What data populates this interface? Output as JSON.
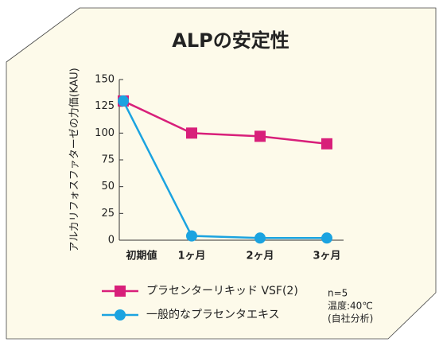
{
  "chart_data": {
    "type": "line",
    "title": "ALPの安定性",
    "y_label": "アルカリフォスファターゼの力価(KAU)",
    "categories": [
      "初期値",
      "1ヶ月",
      "2ヶ月",
      "3ヶ月"
    ],
    "series": [
      {
        "name": "プラセンターリキッド VSF(2)",
        "color": "#d81f7a",
        "marker": "square",
        "values": [
          130,
          100,
          97,
          90
        ]
      },
      {
        "name": "一般的なプラセンタエキス",
        "color": "#1ba3e0",
        "marker": "circle",
        "values": [
          130,
          4,
          2,
          2
        ]
      }
    ],
    "ylim": [
      0,
      150
    ],
    "yticks": [
      0,
      25,
      50,
      75,
      100,
      125,
      150
    ],
    "annotations": [
      "n=5",
      "温度:40℃",
      "(自社分析)"
    ]
  }
}
